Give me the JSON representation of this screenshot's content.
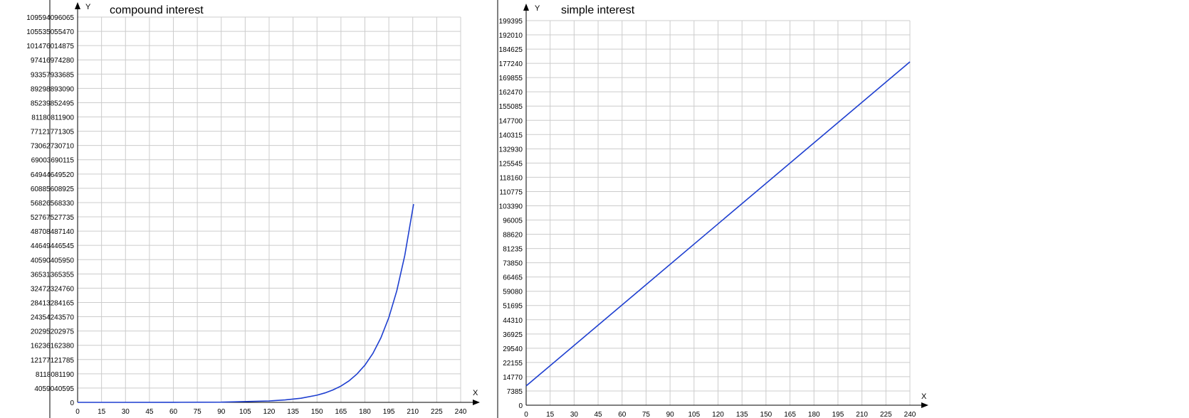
{
  "colors": {
    "line": "#1e3fd0",
    "grid": "#cccccc",
    "axis": "#000000"
  },
  "chart_data": [
    {
      "type": "line",
      "title": "compound interest",
      "xlabel": "X",
      "ylabel": "Y",
      "xlim": [
        0,
        240
      ],
      "x_ticks": [
        0,
        15,
        30,
        45,
        60,
        75,
        90,
        105,
        120,
        135,
        150,
        165,
        180,
        195,
        210,
        225,
        240
      ],
      "ylim": [
        0,
        109594096065
      ],
      "y_ticks": [
        "0",
        "4059040595",
        "8118081190",
        "12177121785",
        "16236162380",
        "20295202975",
        "24354243570",
        "28413284165",
        "32472324760",
        "36531365355",
        "40590405950",
        "44649446545",
        "48708487140",
        "52767527735",
        "56826568330",
        "60885608925",
        "64944649520",
        "69003690115",
        "73062730710",
        "77121771305",
        "81180811900",
        "85239852495",
        "89298893090",
        "93357933685",
        "97416974280",
        "101476014875",
        "105535055470",
        "109594096065"
      ],
      "grid": true,
      "series": [
        {
          "x": [
            0,
            30,
            60,
            90,
            120,
            130,
            140,
            150,
            155,
            160,
            165,
            170,
            175,
            180,
            185,
            190,
            195,
            200,
            205,
            210.5
          ],
          "y": [
            0,
            600000,
            20000000,
            60000000,
            400000000,
            680000000,
            1180000000,
            2040000000,
            2680000000,
            3530000000,
            4640000000,
            6110000000,
            8040000000,
            10580000000,
            13920000000,
            18320000000,
            24110000000,
            31730000000,
            41760000000,
            56400000000
          ]
        }
      ]
    },
    {
      "type": "line",
      "title": "simple interest",
      "xlabel": "X",
      "ylabel": "Y",
      "xlim": [
        0,
        240
      ],
      "x_ticks": [
        0,
        15,
        30,
        45,
        60,
        75,
        90,
        105,
        120,
        135,
        150,
        165,
        180,
        195,
        210,
        225,
        240
      ],
      "ylim": [
        0,
        199395
      ],
      "y_ticks": [
        "0",
        "7385",
        "14770",
        "22155",
        "29540",
        "36925",
        "44310",
        "51695",
        "59080",
        "66465",
        "73850",
        "81235",
        "88620",
        "96005",
        "103390",
        "110775",
        "118160",
        "125545",
        "132930",
        "140315",
        "147700",
        "155085",
        "162470",
        "169855",
        "177240",
        "184625",
        "192010",
        "199395"
      ],
      "grid": true,
      "series": [
        {
          "x": [
            0,
            240
          ],
          "y": [
            10000,
            178000
          ]
        }
      ]
    }
  ]
}
